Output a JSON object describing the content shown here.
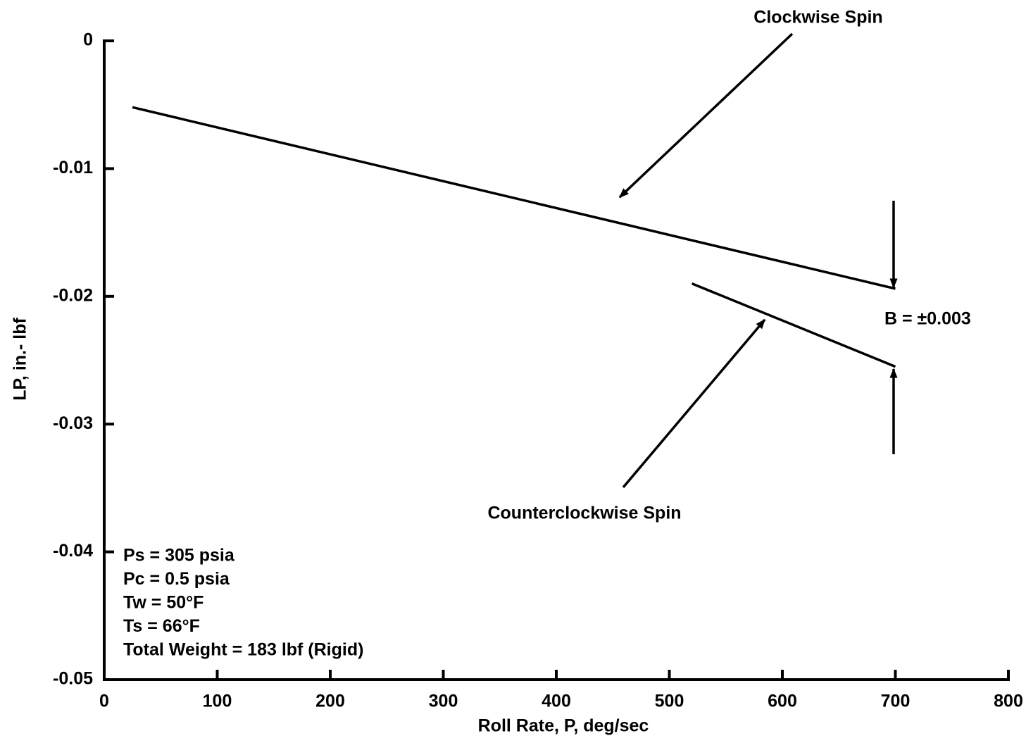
{
  "chart_data": {
    "type": "line",
    "x_label": "Roll Rate, P, deg/sec",
    "y_label": "LP, in.- lbf",
    "xlim": [
      0,
      800
    ],
    "xticks": [
      0,
      100,
      200,
      300,
      400,
      500,
      600,
      700,
      800
    ],
    "ylim": [
      -0.05,
      0
    ],
    "yticks": [
      0,
      -0.01,
      -0.02,
      -0.03,
      -0.04,
      -0.05
    ],
    "series": [
      {
        "name": "Clockwise Spin",
        "color": "#000000",
        "x": [
          25,
          700
        ],
        "values": [
          -0.0052,
          -0.0194
        ]
      },
      {
        "name": "Counterclockwise Spin",
        "color": "#000000",
        "x": [
          520,
          700
        ],
        "values": [
          -0.019,
          -0.0255
        ]
      }
    ],
    "band_label": "B = ±0.003",
    "notes": [
      "Ps = 305 psia",
      "Pc = 0.5 psia",
      "Tw = 50°F",
      "Ts = 66°F",
      "Total Weight = 183 lbf (Rigid)"
    ]
  }
}
